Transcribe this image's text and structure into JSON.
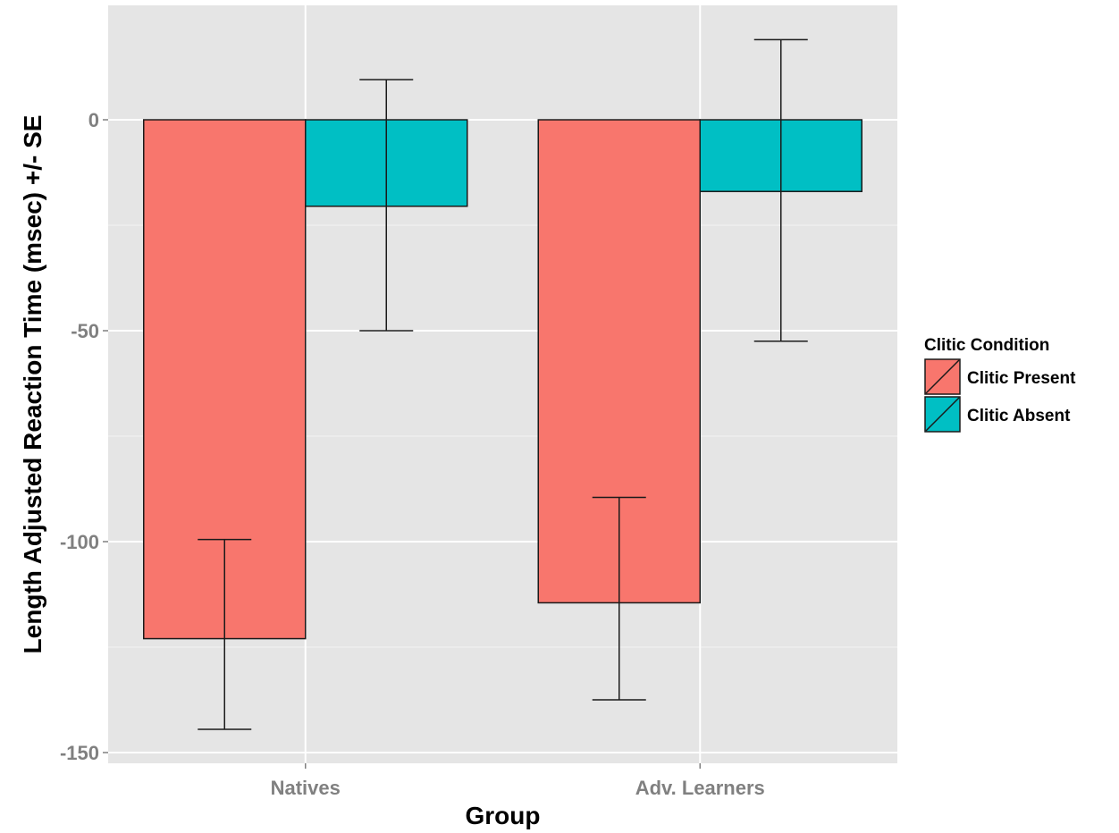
{
  "chart_data": {
    "type": "bar",
    "title": "",
    "xlabel": "Group",
    "ylabel": "Length Adjusted Reaction Time (msec) +/- SE",
    "categories": [
      "Natives",
      "Adv. Learners"
    ],
    "ylim": [
      -150,
      20
    ],
    "yticks": [
      0,
      -50,
      -100,
      -150
    ],
    "ytick_labels": [
      "0",
      "-50",
      "-100",
      "-150"
    ],
    "grid": true,
    "legend": {
      "title": "Clitic Condition",
      "position": "right"
    },
    "series": [
      {
        "name": "Clitic Present",
        "color": "#F8766D",
        "values": [
          -123,
          -114.5
        ],
        "error_low": [
          -144.5,
          -137.5
        ],
        "error_high": [
          -99.5,
          -89.5
        ]
      },
      {
        "name": "Clitic Absent",
        "color": "#00BFC4",
        "values": [
          -20.5,
          -17
        ],
        "error_low": [
          -50,
          -52.5
        ],
        "error_high": [
          9.5,
          19
        ]
      }
    ]
  }
}
